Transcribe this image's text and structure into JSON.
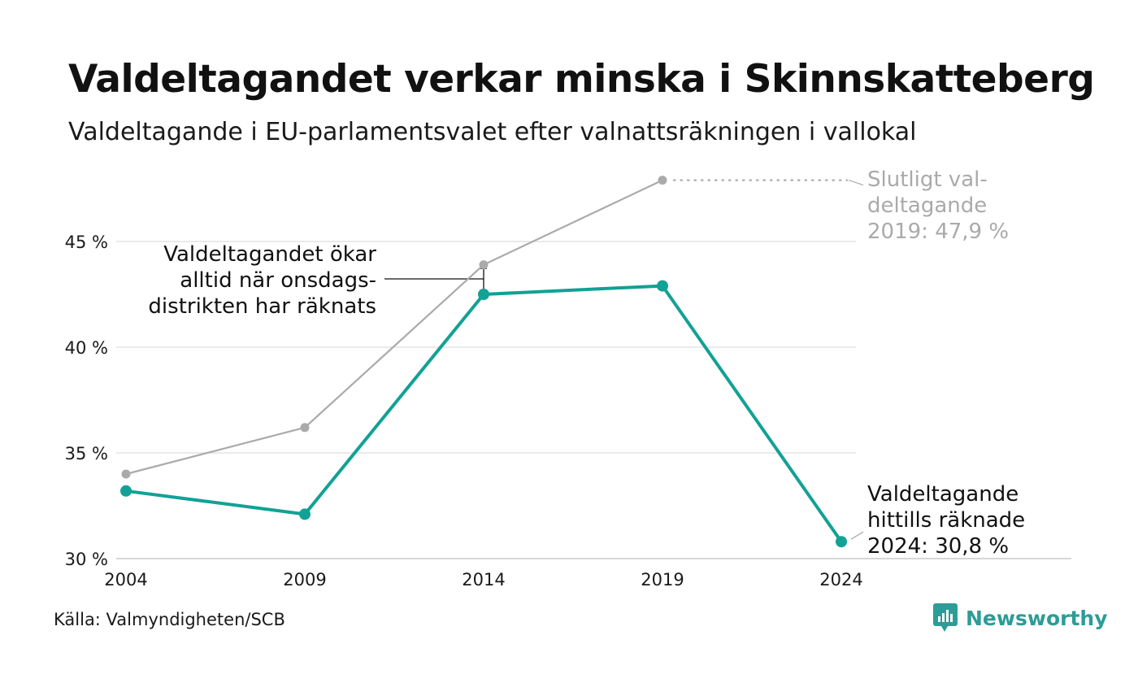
{
  "header": {
    "title": "Valdeltagandet verkar minska i Skinnskatteberg",
    "subtitle": "Valdeltagande i EU-parlamentsvalet efter valnattsräkningen i vallokal"
  },
  "footer": {
    "source": "Källa: Valmyndigheten/SCB",
    "logo_text": "Newsworthy",
    "logo_color": "#2c9c97"
  },
  "chart_data": {
    "type": "line",
    "x": [
      2004,
      2009,
      2014,
      2019,
      2024
    ],
    "x_tick_labels": [
      "2004",
      "2009",
      "2014",
      "2019",
      "2024"
    ],
    "ylim": [
      30,
      48
    ],
    "y_ticks": [
      30,
      35,
      40,
      45
    ],
    "y_tick_labels": [
      "30 %",
      "35 %",
      "40 %",
      "45 %"
    ],
    "grid": "horizontal",
    "series": [
      {
        "values": [
          34.0,
          36.2,
          43.9,
          47.9,
          null
        ],
        "color": "#aaaaaa"
      },
      {
        "values": [
          33.2,
          32.1,
          42.5,
          42.9,
          30.8
        ],
        "color": "#12a195"
      }
    ],
    "annotations": {
      "onsdag": [
        "Valdeltagandet ökar",
        "alltid när onsdags-",
        "distrikten har räknats"
      ],
      "final_2019": [
        "Slutligt val-",
        "deltagande",
        "2019: 47,9 %"
      ],
      "current_2024": [
        "Valdeltagande",
        "hittills räknade",
        "2024: 30,8 %"
      ]
    }
  }
}
